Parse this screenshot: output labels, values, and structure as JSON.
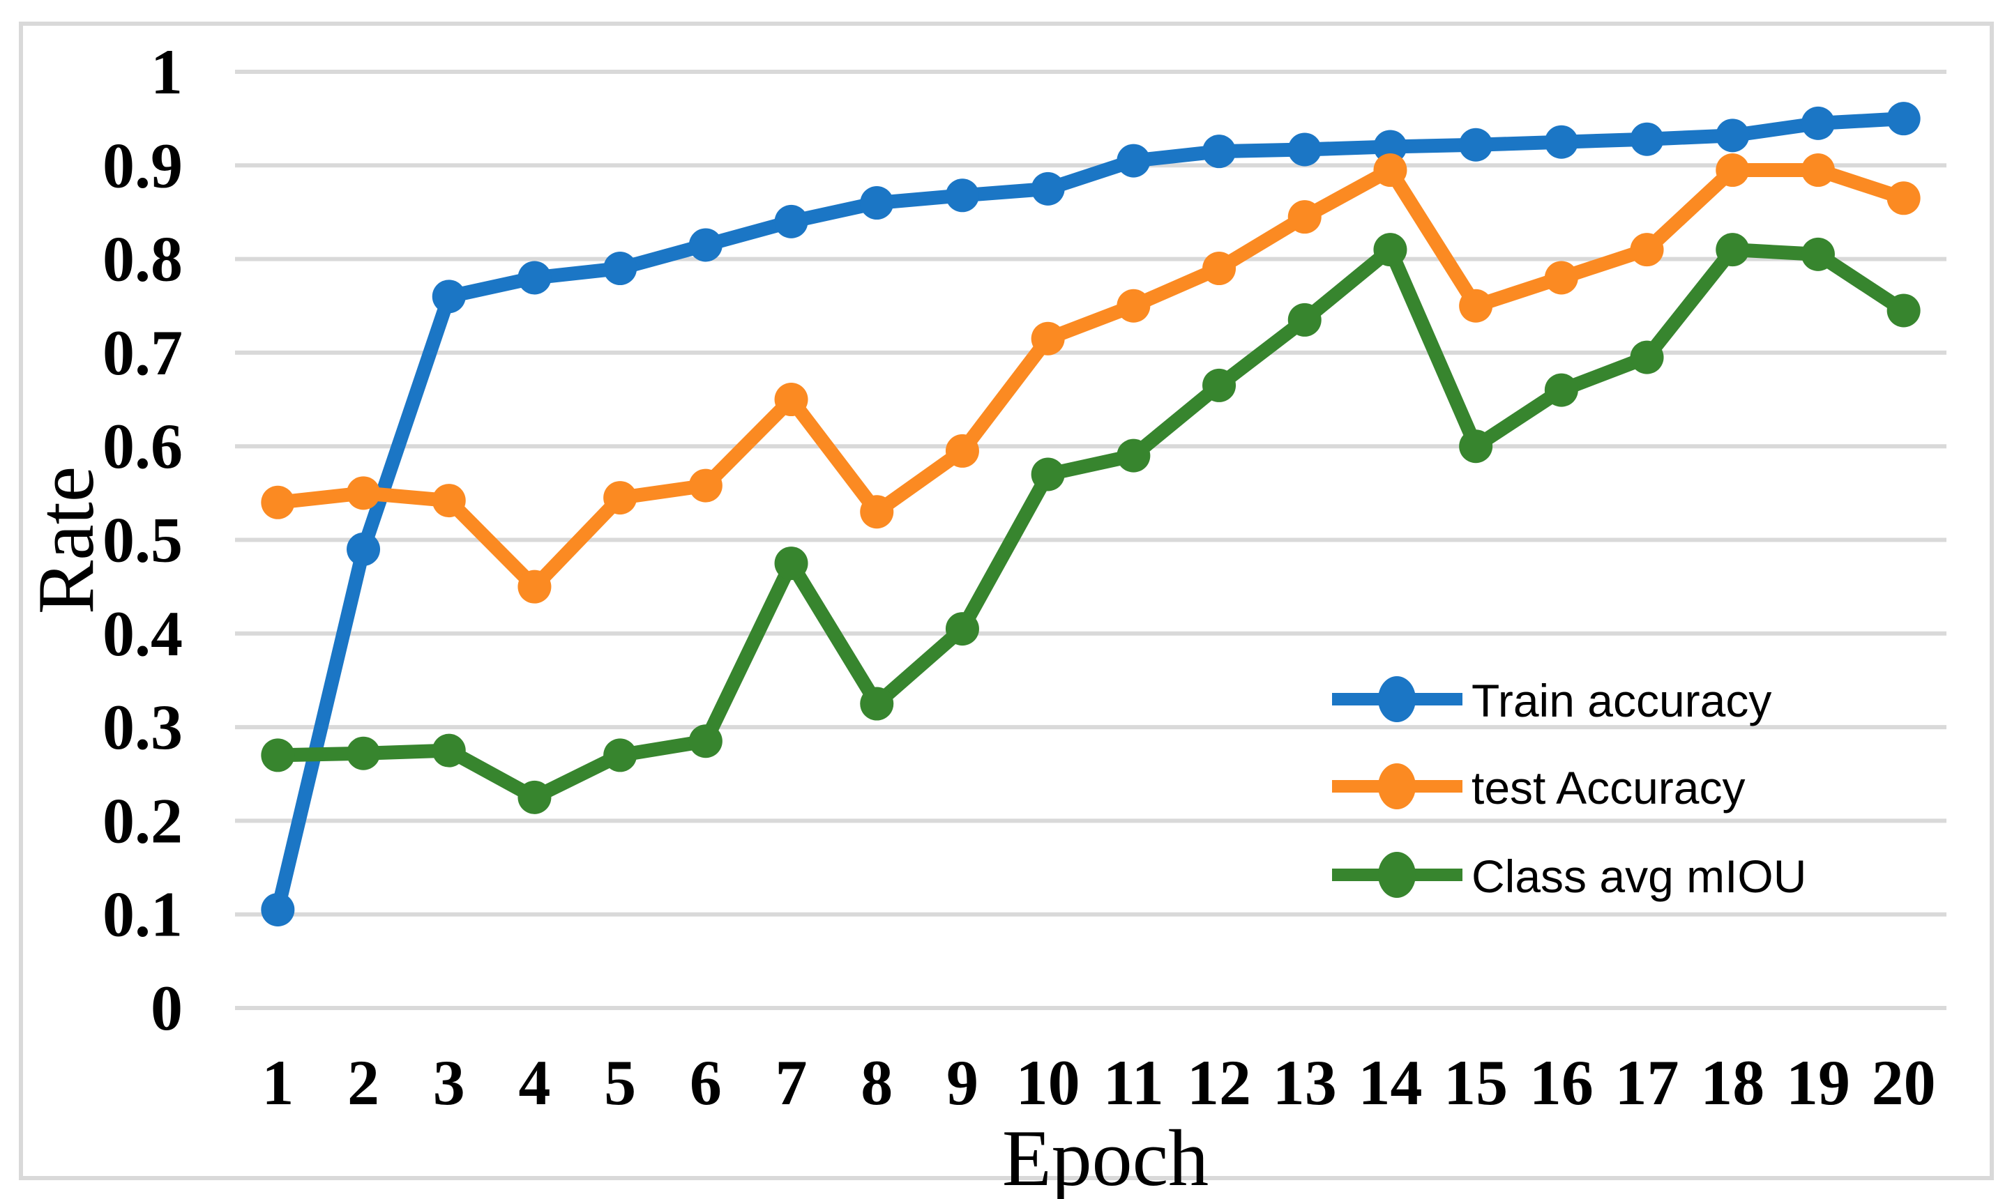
{
  "chart_data": {
    "type": "line",
    "title": "",
    "xlabel": "Epoch",
    "ylabel": "Rate",
    "categories": [
      1,
      2,
      3,
      4,
      5,
      6,
      7,
      8,
      9,
      10,
      11,
      12,
      13,
      14,
      15,
      16,
      17,
      18,
      19,
      20
    ],
    "ylim": [
      0,
      1
    ],
    "ytick_step": 0.1,
    "ytick_labels": [
      "0",
      "0.1",
      "0.2",
      "0.3",
      "0.4",
      "0.5",
      "0.6",
      "0.7",
      "0.8",
      "0.9",
      "1"
    ],
    "grid": "horizontal",
    "grid_color": "#d9d9d9",
    "border_color": "#d9d9d9",
    "background_color": "#ffffff",
    "legend_position": "inside-right-lower",
    "series": [
      {
        "name": "Train accuracy",
        "color": "#1b76c5",
        "values": [
          0.105,
          0.49,
          0.76,
          0.78,
          0.79,
          0.815,
          0.84,
          0.86,
          0.868,
          0.875,
          0.905,
          0.915,
          0.917,
          0.92,
          0.922,
          0.925,
          0.928,
          0.932,
          0.945,
          0.95
        ]
      },
      {
        "name": "test Accuracy",
        "color": "#fb8a22",
        "values": [
          0.54,
          0.55,
          0.542,
          0.45,
          0.545,
          0.558,
          0.65,
          0.53,
          0.595,
          0.715,
          0.75,
          0.79,
          0.845,
          0.895,
          0.75,
          0.78,
          0.81,
          0.895,
          0.895,
          0.865
        ]
      },
      {
        "name": "Class avg mIOU",
        "color": "#37852e",
        "values": [
          0.27,
          0.272,
          0.275,
          0.225,
          0.27,
          0.285,
          0.475,
          0.325,
          0.405,
          0.57,
          0.59,
          0.665,
          0.735,
          0.81,
          0.6,
          0.66,
          0.695,
          0.81,
          0.805,
          0.745
        ]
      }
    ]
  }
}
